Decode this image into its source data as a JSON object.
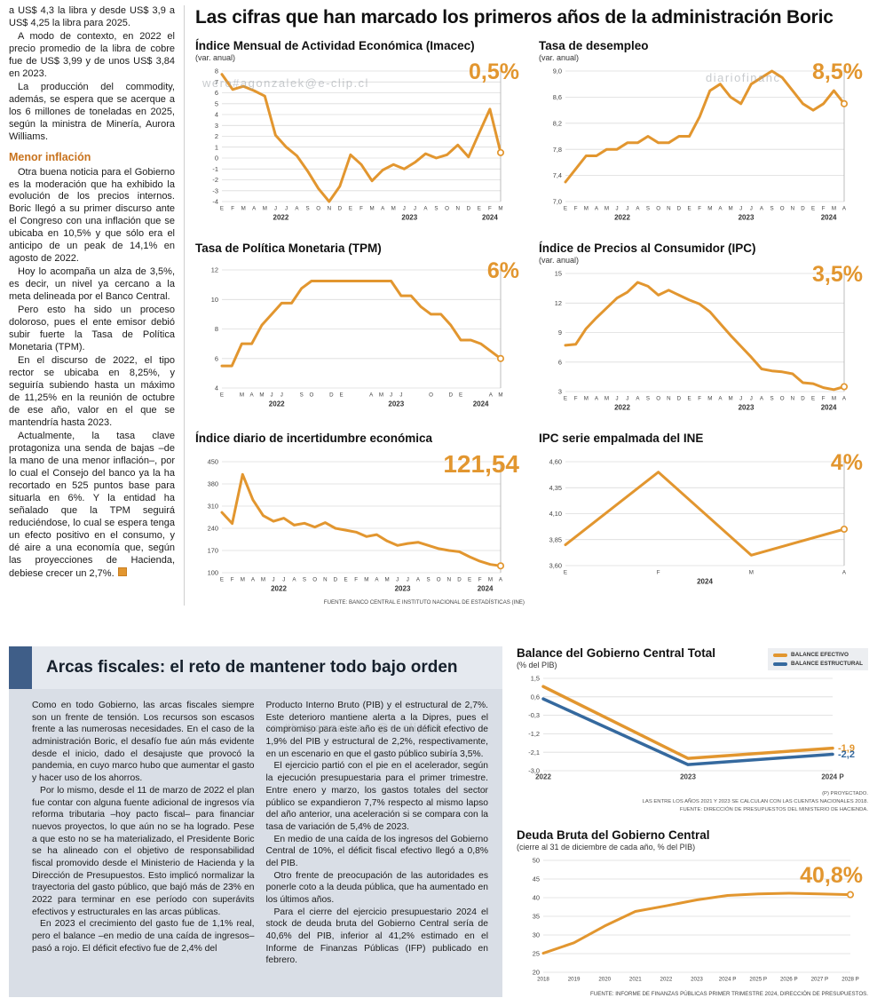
{
  "page": {
    "main_title": "Las cifras que han marcado los primeros años de la administración Boric"
  },
  "watermarks": [
    "wero#agonzalek@e-clip.cl",
    "diariofinanc",
    "ro.#begonzalez—@e-clip.cl"
  ],
  "article": {
    "paras": [
      "a US$ 4,3 la libra y desde US$ 3,9 a US$ 4,25 la libra para 2025.",
      "A modo de contexto, en 2022 el precio promedio de la libra de cobre fue de US$ 3,99 y de unos US$ 3,84 en 2023.",
      "La producción del commodity, además, se espera que se acerque a los 6 millones de toneladas en 2025, según la ministra de Minería, Aurora Williams."
    ],
    "subhead": "Menor inflación",
    "paras2": [
      "Otra buena noticia para el Gobierno es la moderación que ha exhibido la evolución de los precios internos. Boric llegó a su primer discurso ante el Congreso con una inflación que se ubicaba en 10,5% y que sólo era el anticipo de un peak de 14,1% en agosto de 2022.",
      "Hoy lo acompaña un alza de 3,5%, es decir, un nivel ya cercano a la meta delineada por el Banco Central.",
      "Pero esto ha sido un proceso doloroso, pues el ente emisor debió subir fuerte la Tasa de Política Monetaria (TPM).",
      "En el discurso de 2022, el tipo rector se ubicaba en 8,25%, y seguiría subiendo hasta un máximo de 11,25% en la reunión de octubre de ese año, valor en el que se mantendría hasta 2023.",
      "Actualmente, la tasa clave protagoniza una senda de bajas –de la mano de una menor inflación–, por lo cual el Consejo del banco ya la ha recortado en 525 puntos base para situarla en 6%. Y la entidad ha señalado que la TPM seguirá reduciéndose, lo cual se espera tenga un efecto positivo en el consumo, y dé aire a una economía que, según las proyecciones de Hacienda, debiese crecer un 2,7%."
    ]
  },
  "fiscal": {
    "title": "Arcas fiscales: el reto de mantener todo bajo orden",
    "col1": [
      "Como en todo Gobierno, las arcas fiscales siempre son un frente de tensión. Los recursos son escasos frente a las numerosas necesidades. En el caso de la administración Boric, el desafío fue aún más evidente desde el inicio, dado el desajuste que provocó la pandemia, en cuyo marco hubo que aumentar el gasto y hacer uso de los ahorros.",
      "Por lo mismo, desde el 11 de marzo de 2022 el plan fue contar con alguna fuente adicional de ingresos vía reforma tributaria –hoy pacto fiscal– para financiar nuevos proyectos, lo que aún no se ha logrado. Pese a que esto no se ha materializado, el Presidente Boric se ha alineado con el objetivo de responsabilidad fiscal promovido desde el Ministerio de Hacienda y la Dirección de Presupuestos. Esto implicó normalizar la trayectoria del gasto público, que bajó más de 23% en 2022 para terminar en ese período con superávits efectivos y estructurales en las arcas públicas.",
      "En 2023 el crecimiento del gasto fue de 1,1% real, pero el balance –en medio de una caída de ingresos– pasó a rojo. El déficit efectivo fue de 2,4% del"
    ],
    "col2": [
      "Producto Interno Bruto (PIB) y el estructural de 2,7%. Este deterioro mantiene alerta a la Dipres, pues el compromiso para este año es de un déficit efectivo de 1,9% del PIB y estructural de 2,2%, respectivamente, en un escenario en que el gasto público subiría 3,5%.",
      "El ejercicio partió con el pie en el acelerador, según la ejecución presupuestaria para el primer trimestre. Entre enero y marzo, los gastos totales del sector público se expandieron 7,7% respecto al mismo lapso del año anterior, una aceleración si se compara con la tasa de variación de 5,4% de 2023.",
      "En medio de una caída de los ingresos del Gobierno Central de 10%, el déficit fiscal efectivo llegó a 0,8% del PIB.",
      "Otro frente de preocupación de las autoridades es ponerle coto a la deuda pública, que ha aumentado en los últimos años.",
      "Para el cierre del ejercicio presupuestario 2024 el stock de deuda bruta del Gobierno Central sería de 40,6% del PIB, inferior al 41,2% estimado en el Informe de Finanzas Públicas (IFP) publicado en febrero."
    ]
  },
  "colors": {
    "orange": "#E2962F",
    "blue": "#35699E",
    "accent_bar": "#3F5E88",
    "subhead_orange": "#C8731E"
  },
  "chart_data": {
    "imacec": {
      "type": "line",
      "title": "Índice Mensual de Actividad Económica (Imacec)",
      "subtitle": "(var. anual)",
      "big_value": "0,5%",
      "ymin": -4,
      "ymax": 8,
      "yticks": [
        {
          "v": 8,
          "l": "8"
        },
        {
          "v": 7,
          "l": "7"
        },
        {
          "v": 6,
          "l": "6"
        },
        {
          "v": 5,
          "l": "5"
        },
        {
          "v": 4,
          "l": "4"
        },
        {
          "v": 3,
          "l": "3"
        },
        {
          "v": 2,
          "l": "2"
        },
        {
          "v": 1,
          "l": "1"
        },
        {
          "v": 0,
          "l": "0"
        },
        {
          "v": -1,
          "l": "-1"
        },
        {
          "v": -2,
          "l": "-2"
        },
        {
          "v": -3,
          "l": "-3"
        },
        {
          "v": -4,
          "l": "-4"
        }
      ],
      "xlabels": [
        "E",
        "F",
        "M",
        "A",
        "M",
        "J",
        "J",
        "A",
        "S",
        "O",
        "N",
        "D",
        "E",
        "F",
        "M",
        "A",
        "M",
        "J",
        "J",
        "A",
        "S",
        "O",
        "N",
        "D",
        "E",
        "F",
        "M"
      ],
      "years": [
        {
          "label": "2022",
          "from": 0,
          "to": 11
        },
        {
          "label": "2023",
          "from": 12,
          "to": 23
        },
        {
          "label": "2024",
          "from": 24,
          "to": 26
        }
      ],
      "end_line": true,
      "end_marker": true,
      "series": [
        {
          "name": "Imacec",
          "color": "#E2962F",
          "width": 3,
          "values": [
            7.7,
            6.3,
            6.6,
            6.2,
            5.7,
            2.1,
            1.0,
            0.2,
            -1.2,
            -2.8,
            -4.0,
            -2.6,
            0.3,
            -0.6,
            -2.1,
            -1.1,
            -0.6,
            -1.0,
            -0.4,
            0.4,
            0.0,
            0.3,
            1.2,
            0.1,
            2.3,
            4.5,
            0.5
          ]
        }
      ]
    },
    "desempleo": {
      "type": "line",
      "title": "Tasa de desempleo",
      "subtitle": "(var. anual)",
      "big_value": "8,5%",
      "ymin": 7.0,
      "ymax": 9.0,
      "yticks": [
        {
          "v": 9.0,
          "l": "9,0"
        },
        {
          "v": 8.6,
          "l": "8,6"
        },
        {
          "v": 8.2,
          "l": "8,2"
        },
        {
          "v": 7.8,
          "l": "7,8"
        },
        {
          "v": 7.4,
          "l": "7,4"
        },
        {
          "v": 7.0,
          "l": "7,0"
        }
      ],
      "xlabels": [
        "E",
        "F",
        "M",
        "A",
        "M",
        "J",
        "J",
        "A",
        "S",
        "O",
        "N",
        "D",
        "E",
        "F",
        "M",
        "A",
        "M",
        "J",
        "J",
        "A",
        "S",
        "O",
        "N",
        "D",
        "E",
        "F",
        "M",
        "A"
      ],
      "years": [
        {
          "label": "2022",
          "from": 0,
          "to": 11
        },
        {
          "label": "2023",
          "from": 12,
          "to": 23
        },
        {
          "label": "2024",
          "from": 24,
          "to": 27
        }
      ],
      "end_line": true,
      "end_marker": true,
      "series": [
        {
          "name": "Tasa de desempleo",
          "color": "#E2962F",
          "width": 3,
          "values": [
            7.3,
            7.5,
            7.7,
            7.7,
            7.8,
            7.8,
            7.9,
            7.9,
            8.0,
            7.9,
            7.9,
            8.0,
            8.0,
            8.3,
            8.7,
            8.8,
            8.6,
            8.5,
            8.8,
            8.9,
            9.0,
            8.9,
            8.7,
            8.5,
            8.4,
            8.5,
            8.7,
            8.5
          ]
        }
      ]
    },
    "tpm": {
      "type": "line",
      "title": "Tasa de Política Monetaria (TPM)",
      "big_value": "6%",
      "ymin": 4,
      "ymax": 12,
      "yticks": [
        {
          "v": 12,
          "l": "12"
        },
        {
          "v": 10,
          "l": "10"
        },
        {
          "v": 8,
          "l": "8"
        },
        {
          "v": 6,
          "l": "6"
        },
        {
          "v": 4,
          "l": "4"
        }
      ],
      "xlabels": [
        "E",
        "",
        "M",
        "A",
        "M",
        "J",
        "J",
        "",
        "S",
        "O",
        "",
        "D",
        "E",
        "",
        "",
        "A",
        "M",
        "J",
        "J",
        "",
        "",
        "O",
        "",
        "D",
        "E",
        "",
        "",
        "A",
        "M"
      ],
      "years": [
        {
          "label": "2022",
          "from": 0,
          "to": 11
        },
        {
          "label": "2023",
          "from": 12,
          "to": 23
        },
        {
          "label": "2024",
          "from": 24,
          "to": 28
        }
      ],
      "end_line": true,
      "end_marker": true,
      "series": [
        {
          "name": "TPM",
          "color": "#E2962F",
          "width": 3,
          "values": [
            5.5,
            5.5,
            7.0,
            7.0,
            8.25,
            9.0,
            9.75,
            9.75,
            10.75,
            11.25,
            11.25,
            11.25,
            11.25,
            11.25,
            11.25,
            11.25,
            11.25,
            11.25,
            10.25,
            10.25,
            9.5,
            9.0,
            9.0,
            8.25,
            7.25,
            7.25,
            7.0,
            6.5,
            6.0
          ]
        }
      ]
    },
    "ipc": {
      "type": "line",
      "title": "Índice de Precios al Consumidor (IPC)",
      "subtitle": "(var. anual)",
      "big_value": "3,5%",
      "ymin": 3,
      "ymax": 15,
      "yticks": [
        {
          "v": 15,
          "l": "15"
        },
        {
          "v": 12,
          "l": "12"
        },
        {
          "v": 9,
          "l": "9"
        },
        {
          "v": 6,
          "l": "6"
        },
        {
          "v": 3,
          "l": "3"
        }
      ],
      "xlabels": [
        "E",
        "F",
        "M",
        "A",
        "M",
        "J",
        "J",
        "A",
        "S",
        "O",
        "N",
        "D",
        "E",
        "F",
        "M",
        "A",
        "M",
        "J",
        "J",
        "A",
        "S",
        "O",
        "N",
        "D",
        "E",
        "F",
        "M",
        "A"
      ],
      "years": [
        {
          "label": "2022",
          "from": 0,
          "to": 11
        },
        {
          "label": "2023",
          "from": 12,
          "to": 23
        },
        {
          "label": "2024",
          "from": 24,
          "to": 27
        }
      ],
      "end_line": true,
      "end_marker": true,
      "series": [
        {
          "name": "IPC",
          "color": "#E2962F",
          "width": 3,
          "values": [
            7.7,
            7.8,
            9.4,
            10.5,
            11.5,
            12.5,
            13.1,
            14.1,
            13.7,
            12.8,
            13.3,
            12.8,
            12.3,
            11.9,
            11.1,
            9.9,
            8.7,
            7.6,
            6.5,
            5.3,
            5.1,
            5.0,
            4.8,
            3.9,
            3.8,
            3.4,
            3.2,
            3.5
          ]
        }
      ]
    },
    "incertidumbre": {
      "type": "line",
      "title": "Índice diario de incertidumbre económica",
      "big_value": "121,54",
      "source": "FUENTE: BANCO CENTRAL E INSTITUTO NACIONAL DE ESTADÍSTICAS (INE)",
      "ymin": 100,
      "ymax": 450,
      "yticks": [
        {
          "v": 450,
          "l": "450"
        },
        {
          "v": 380,
          "l": "380"
        },
        {
          "v": 310,
          "l": "310"
        },
        {
          "v": 240,
          "l": "240"
        },
        {
          "v": 170,
          "l": "170"
        },
        {
          "v": 100,
          "l": "100"
        }
      ],
      "xlabels": [
        "E",
        "F",
        "M",
        "A",
        "M",
        "J",
        "J",
        "A",
        "S",
        "O",
        "N",
        "D",
        "E",
        "F",
        "M",
        "A",
        "M",
        "J",
        "J",
        "A",
        "S",
        "O",
        "N",
        "D",
        "E",
        "F",
        "M",
        "A"
      ],
      "years": [
        {
          "label": "2022",
          "from": 0,
          "to": 11
        },
        {
          "label": "2023",
          "from": 12,
          "to": 23
        },
        {
          "label": "2024",
          "from": 24,
          "to": 27
        }
      ],
      "end_line": true,
      "end_marker": true,
      "series": [
        {
          "name": "Incertidumbre económica",
          "color": "#E2962F",
          "width": 3,
          "values": [
            290,
            255,
            410,
            330,
            280,
            262,
            272,
            250,
            256,
            244,
            258,
            240,
            234,
            228,
            214,
            220,
            200,
            186,
            192,
            196,
            186,
            176,
            170,
            166,
            150,
            136,
            126,
            121.54
          ]
        }
      ]
    },
    "ipc_empalmada": {
      "type": "line",
      "title": "IPC serie empalmada del INE",
      "big_value": "4%",
      "ymin": 3.6,
      "ymax": 4.6,
      "yticks": [
        {
          "v": 4.6,
          "l": "4,60"
        },
        {
          "v": 4.35,
          "l": "4,35"
        },
        {
          "v": 4.1,
          "l": "4,10"
        },
        {
          "v": 3.85,
          "l": "3,85"
        },
        {
          "v": 3.6,
          "l": "3,60"
        }
      ],
      "xlabels": [
        "E",
        "F",
        "M",
        "A"
      ],
      "years": [
        {
          "label": "2024",
          "from": 0,
          "to": 3
        }
      ],
      "end_line": true,
      "end_marker": true,
      "series": [
        {
          "name": "IPC serie empalmada",
          "color": "#E2962F",
          "width": 3,
          "values": [
            3.8,
            4.5,
            3.7,
            3.95
          ]
        }
      ]
    },
    "balance": {
      "type": "line",
      "title": "Balance del Gobierno Central Total",
      "subtitle": "(% del PIB)",
      "ymin": -3.0,
      "ymax": 1.5,
      "mright": 36,
      "xlsize": 8,
      "xlbold": true,
      "yticks": [
        {
          "v": 1.5,
          "l": "1,5"
        },
        {
          "v": 0.6,
          "l": "0,6"
        },
        {
          "v": -0.3,
          "l": "-0,3"
        },
        {
          "v": -1.2,
          "l": "-1,2"
        },
        {
          "v": -2.1,
          "l": "-2,1"
        },
        {
          "v": -3.0,
          "l": "-3,0"
        }
      ],
      "xlabels": [
        "2022",
        "2023",
        "2024 P"
      ],
      "series": [
        {
          "name": "BALANCE EFECTIVO",
          "color": "#E2962F",
          "width": 3.5,
          "end_label": "-1,9",
          "values": [
            1.1,
            -2.4,
            -1.9
          ]
        },
        {
          "name": "BALANCE ESTRUCTURAL",
          "color": "#35699E",
          "width": 3.5,
          "end_label": "-2,2",
          "values": [
            0.5,
            -2.7,
            -2.2
          ]
        }
      ],
      "notes": [
        "(P) PROYECTADO.",
        "LAS ENTRE LOS AÑOS 2021 Y 2023 SE CALCULAN CON LAS CUENTAS NACIONALES 2018.",
        "FUENTE: DIRECCIÓN DE PRESUPUESTOS DEL MINISTERIO DE HACIENDA."
      ]
    },
    "deuda": {
      "type": "line",
      "title": "Deuda Bruta del Gobierno Central",
      "subtitle": "(cierre al 31 de diciembre de cada año, % del PIB)",
      "big_value": "40,8%",
      "source": "FUENTE: INFORME DE FINANZAS PÚBLICAS PRIMER TRIMESTRE 2024, DIRECCIÓN DE PRESUPUESTOS.",
      "ymin": 20,
      "ymax": 50,
      "yticks": [
        {
          "v": 50,
          "l": "50"
        },
        {
          "v": 45,
          "l": "45"
        },
        {
          "v": 40,
          "l": "40"
        },
        {
          "v": 35,
          "l": "35"
        },
        {
          "v": 30,
          "l": "30"
        },
        {
          "v": 25,
          "l": "25"
        },
        {
          "v": 20,
          "l": "20"
        }
      ],
      "xlabels": [
        "2018",
        "2019",
        "2020",
        "2021",
        "2022",
        "2023",
        "2024 P",
        "2025 P",
        "2026 P",
        "2027 P",
        "2028 P"
      ],
      "end_marker": true,
      "series": [
        {
          "name": "Deuda bruta",
          "color": "#E2962F",
          "width": 3,
          "values": [
            25.1,
            27.9,
            32.4,
            36.3,
            37.8,
            39.4,
            40.6,
            41.0,
            41.2,
            41.0,
            40.8
          ]
        }
      ]
    }
  }
}
